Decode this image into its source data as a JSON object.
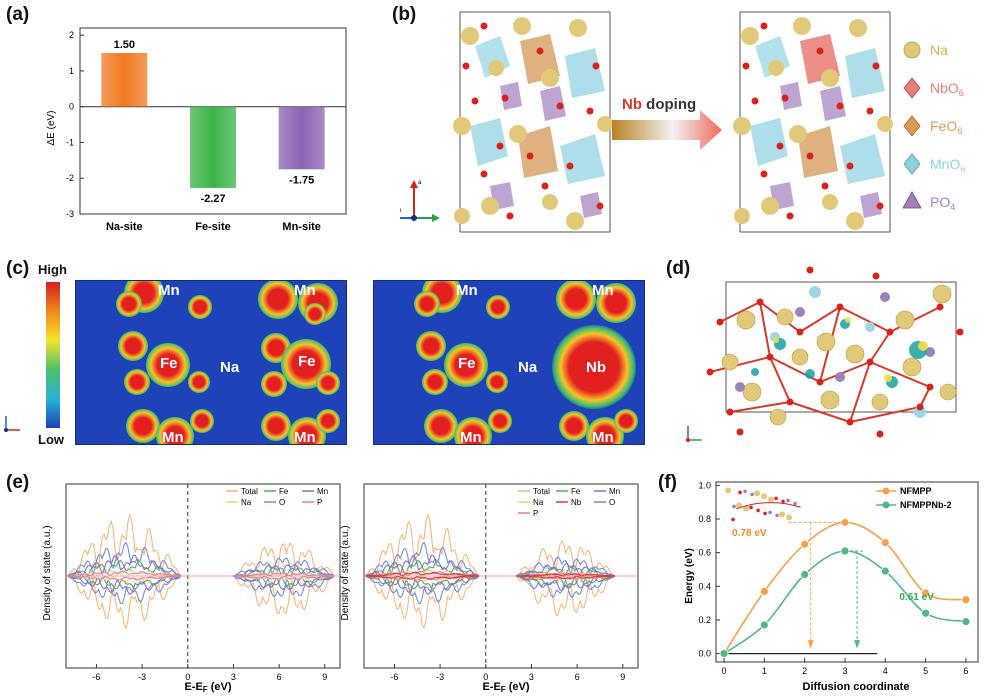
{
  "panels": {
    "a": {
      "label": "(a)"
    },
    "b": {
      "label": "(b)"
    },
    "c": {
      "label": "(c)"
    },
    "d": {
      "label": "(d)"
    },
    "e": {
      "label": "(e)"
    },
    "f": {
      "label": "(f)"
    }
  },
  "chart_data": [
    {
      "panel": "a",
      "type": "bar",
      "categories": [
        "Na-site",
        "Fe-site",
        "Mn-site"
      ],
      "values": [
        1.5,
        -2.27,
        -1.75
      ],
      "data_labels": [
        "1.50",
        "-2.27",
        "-1.75"
      ],
      "colors": [
        "#f07a22",
        "#3cb34a",
        "#8a63b0"
      ],
      "ylabel": "ΔE (eV)",
      "ylim": [
        -3,
        2.2
      ],
      "yticks": [
        "2",
        "1",
        "0",
        "-1",
        "-2",
        "-3"
      ],
      "grid": false
    },
    {
      "panel": "e-left",
      "type": "line",
      "xlabel": "E-E",
      "xlabel_sub": "F",
      "xlabel_unit": " (eV)",
      "ylabel": "Density of state (a.u.)",
      "xticks": [
        "-6",
        "-3",
        "0",
        "3",
        "6",
        "9"
      ],
      "xlim": [
        -8,
        10
      ],
      "fermi_level": 0,
      "legend_position": "top-right",
      "series": [
        {
          "name": "Total",
          "color": "#f5b67a"
        },
        {
          "name": "Fe",
          "color": "#4caf50"
        },
        {
          "name": "Mn",
          "color": "#8e6bbf"
        },
        {
          "name": "Na",
          "color": "#e8d27a"
        },
        {
          "name": "O",
          "color": "#6f8fd8"
        },
        {
          "name": "P",
          "color": "#e07ab5"
        }
      ]
    },
    {
      "panel": "e-right",
      "type": "line",
      "xlabel": "E-E",
      "xlabel_sub": "F",
      "xlabel_unit": " (eV)",
      "ylabel": "Density of state (a.u.)",
      "xticks": [
        "-6",
        "-3",
        "0",
        "3",
        "6",
        "9"
      ],
      "xlim": [
        -8,
        10
      ],
      "fermi_level": 0,
      "legend_position": "top-right",
      "series": [
        {
          "name": "Total",
          "color": "#f5b67a"
        },
        {
          "name": "Fe",
          "color": "#4caf50"
        },
        {
          "name": "Mn",
          "color": "#8e6bbf"
        },
        {
          "name": "Na",
          "color": "#e8d27a"
        },
        {
          "name": "Nb",
          "color": "#e0342c"
        },
        {
          "name": "O",
          "color": "#6f8fd8"
        },
        {
          "name": "P",
          "color": "#e07ab5"
        }
      ]
    },
    {
      "panel": "f",
      "type": "line",
      "xlabel": "Diffusion coordinate",
      "ylabel": "Energy (eV)",
      "xlim": [
        -0.2,
        6.3
      ],
      "ylim": [
        -0.05,
        1.02
      ],
      "xticks": [
        "0",
        "1",
        "2",
        "3",
        "4",
        "5",
        "6"
      ],
      "yticks": [
        "0.0",
        "0.2",
        "0.4",
        "0.6",
        "0.8",
        "1.0"
      ],
      "legend_position": "top-right",
      "series": [
        {
          "name": "NFMPP",
          "color": "#f5a04a",
          "x": [
            0,
            1,
            2,
            3,
            4,
            5,
            6
          ],
          "y": [
            0,
            0.37,
            0.65,
            0.78,
            0.66,
            0.36,
            0.32
          ]
        },
        {
          "name": "NFMPPNb-2",
          "color": "#4fb884",
          "x": [
            0,
            1,
            2,
            3,
            4,
            5,
            6
          ],
          "y": [
            0,
            0.17,
            0.47,
            0.61,
            0.49,
            0.24,
            0.19
          ]
        }
      ],
      "annotations": [
        {
          "text": "0.78 eV",
          "color": "#f08a2a"
        },
        {
          "text": "0.61 eV",
          "color": "#3aa85a"
        }
      ]
    }
  ],
  "panel_b": {
    "arrow_text_nb": "Nb",
    "arrow_text_rest": " doping",
    "axis_a": "a",
    "axis_b": "b",
    "legend": [
      {
        "label": "Na",
        "color": "#d9b24a",
        "icon": "sphere"
      },
      {
        "label": "NbO",
        "sub": "6",
        "color": "#e87d7d",
        "icon": "octahedron"
      },
      {
        "label": "FeO",
        "sub": "6",
        "color": "#d99a55",
        "icon": "octahedron"
      },
      {
        "label": "MnO",
        "sub": "6",
        "color": "#8fd3e0",
        "icon": "octahedron"
      },
      {
        "label": "PO",
        "sub": "4",
        "color": "#a27fb8",
        "icon": "tetrahedron"
      }
    ]
  },
  "panel_c": {
    "scale_high": "High",
    "scale_low": "Low",
    "left_map": {
      "mn_top_1": "Mn",
      "mn_top_2": "Mn",
      "fe_1": "Fe",
      "na": "Na",
      "fe_2": "Fe",
      "mn_bottom_1": "Mn",
      "mn_bottom_2": "Mn"
    },
    "right_map": {
      "mn_top_1": "Mn",
      "mn_top_2": "Mn",
      "fe_1": "Fe",
      "na": "Na",
      "nb": "Nb",
      "mn_bottom_1": "Mn",
      "mn_bottom_2": "Mn"
    }
  }
}
